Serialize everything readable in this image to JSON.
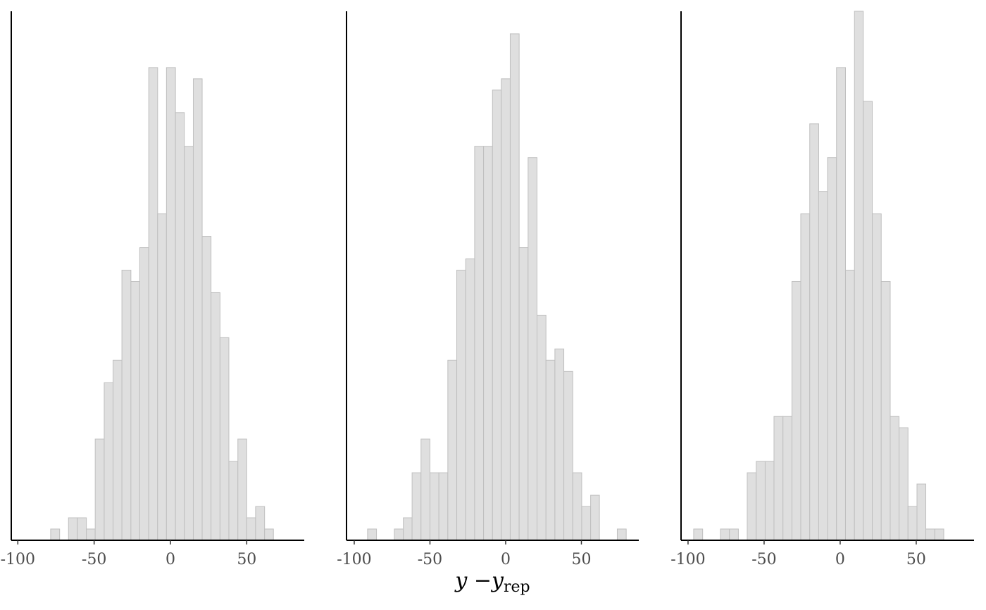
{
  "chart_data": [
    {
      "type": "histogram",
      "color": "#dfdfdf",
      "edgecolor": "#bfbfbf",
      "bins": [
        -78.5,
        -72.6,
        -66.8,
        -61.0,
        -55.1,
        -49.3,
        -43.4,
        -37.6,
        -31.8,
        -25.9,
        -20.1,
        -14.2,
        -8.4,
        -2.6,
        3.3,
        9.1,
        15.0,
        20.8,
        26.6,
        32.5,
        38.3,
        44.2,
        50.0,
        55.8,
        61.7,
        67.5
      ],
      "values": [
        1,
        0,
        2,
        2,
        1,
        9,
        14,
        16,
        24,
        23,
        26,
        42,
        29,
        42,
        38,
        35,
        41,
        27,
        22,
        18,
        7,
        9,
        2,
        3,
        1
      ],
      "xlim": [
        -104.3,
        87.7
      ],
      "xticks": [
        -100,
        -50,
        0,
        50
      ],
      "ylim": [
        0,
        47
      ]
    },
    {
      "type": "histogram",
      "color": "#dfdfdf",
      "edgecolor": "#bfbfbf",
      "bins": [
        -91.2,
        -85.3,
        -79.4,
        -73.5,
        -67.6,
        -61.8,
        -55.9,
        -50.0,
        -44.1,
        -38.2,
        -32.3,
        -26.4,
        -20.5,
        -14.6,
        -8.7,
        -2.9,
        3.0,
        8.9,
        14.8,
        20.7,
        26.6,
        32.5,
        38.4,
        44.3,
        50.2,
        56.1,
        61.9,
        67.8,
        73.7,
        79.6
      ],
      "values": [
        1,
        0,
        0,
        1,
        2,
        6,
        9,
        6,
        6,
        16,
        24,
        25,
        35,
        35,
        40,
        41,
        45,
        26,
        34,
        20,
        16,
        17,
        15,
        6,
        3,
        4,
        0,
        0,
        1
      ],
      "xlim": [
        -105.1,
        87.9
      ],
      "xticks": [
        -100,
        -50,
        0,
        50
      ],
      "ylim": [
        0,
        47
      ],
      "xlabel": [
        "y −y",
        "rep"
      ]
    },
    {
      "type": "histogram",
      "color": "#dfdfdf",
      "edgecolor": "#bfbfbf",
      "bins": [
        -96.3,
        -90.4,
        -84.6,
        -78.7,
        -72.8,
        -66.9,
        -61.1,
        -55.2,
        -49.3,
        -43.5,
        -37.6,
        -31.7,
        -25.9,
        -20.0,
        -14.1,
        -8.3,
        -2.4,
        3.5,
        9.4,
        15.2,
        21.1,
        27.0,
        32.9,
        38.7,
        44.6,
        50.5,
        56.3,
        62.2,
        68.1
      ],
      "values": [
        1,
        0,
        0,
        1,
        1,
        0,
        6,
        7,
        7,
        11,
        11,
        23,
        29,
        37,
        31,
        34,
        42,
        24,
        47,
        39,
        29,
        23,
        11,
        10,
        3,
        5,
        1,
        1
      ],
      "xlim": [
        -104.6,
        88.0
      ],
      "xticks": [
        -100,
        -50,
        0,
        50
      ],
      "ylim": [
        0,
        47
      ]
    }
  ]
}
